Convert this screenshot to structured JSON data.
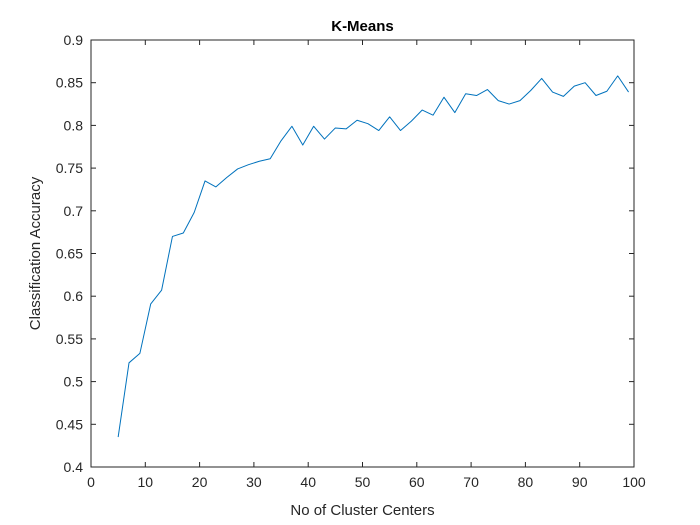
{
  "chart_data": {
    "type": "line",
    "title": "K-Means",
    "xlabel": "No of Cluster Centers",
    "ylabel": "Classification Accuracy",
    "xlim": [
      0,
      100
    ],
    "ylim": [
      0.4,
      0.9
    ],
    "xticks": [
      0,
      10,
      20,
      30,
      40,
      50,
      60,
      70,
      80,
      90,
      100
    ],
    "yticks": [
      0.4,
      0.45,
      0.5,
      0.55,
      0.6,
      0.65,
      0.7,
      0.75,
      0.8,
      0.85,
      0.9
    ],
    "xtick_labels": [
      "0",
      "10",
      "20",
      "30",
      "40",
      "50",
      "60",
      "70",
      "80",
      "90",
      "100"
    ],
    "ytick_labels": [
      "0.4",
      "0.45",
      "0.5",
      "0.55",
      "0.6",
      "0.65",
      "0.7",
      "0.75",
      "0.8",
      "0.85",
      "0.9"
    ],
    "grid": false,
    "line_color": "#0072BD",
    "series": [
      {
        "x": [
          5,
          7,
          9,
          11,
          13,
          15,
          17,
          19,
          21,
          23,
          25,
          27,
          29,
          31,
          33,
          35,
          37,
          39,
          41,
          43,
          45,
          47,
          49,
          51,
          53,
          55,
          57,
          59,
          61,
          63,
          65,
          67,
          69,
          71,
          73,
          75,
          77,
          79,
          81,
          83,
          85,
          87,
          89,
          91,
          93,
          95,
          97,
          99
        ],
        "values": [
          0.435,
          0.522,
          0.533,
          0.591,
          0.607,
          0.67,
          0.674,
          0.698,
          0.735,
          0.728,
          0.739,
          0.749,
          0.754,
          0.758,
          0.761,
          0.782,
          0.799,
          0.777,
          0.799,
          0.784,
          0.797,
          0.796,
          0.806,
          0.802,
          0.794,
          0.81,
          0.794,
          0.805,
          0.818,
          0.812,
          0.833,
          0.815,
          0.837,
          0.835,
          0.842,
          0.829,
          0.825,
          0.829,
          0.841,
          0.855,
          0.839,
          0.834,
          0.846,
          0.85,
          0.835,
          0.84,
          0.858,
          0.839
        ]
      }
    ]
  }
}
